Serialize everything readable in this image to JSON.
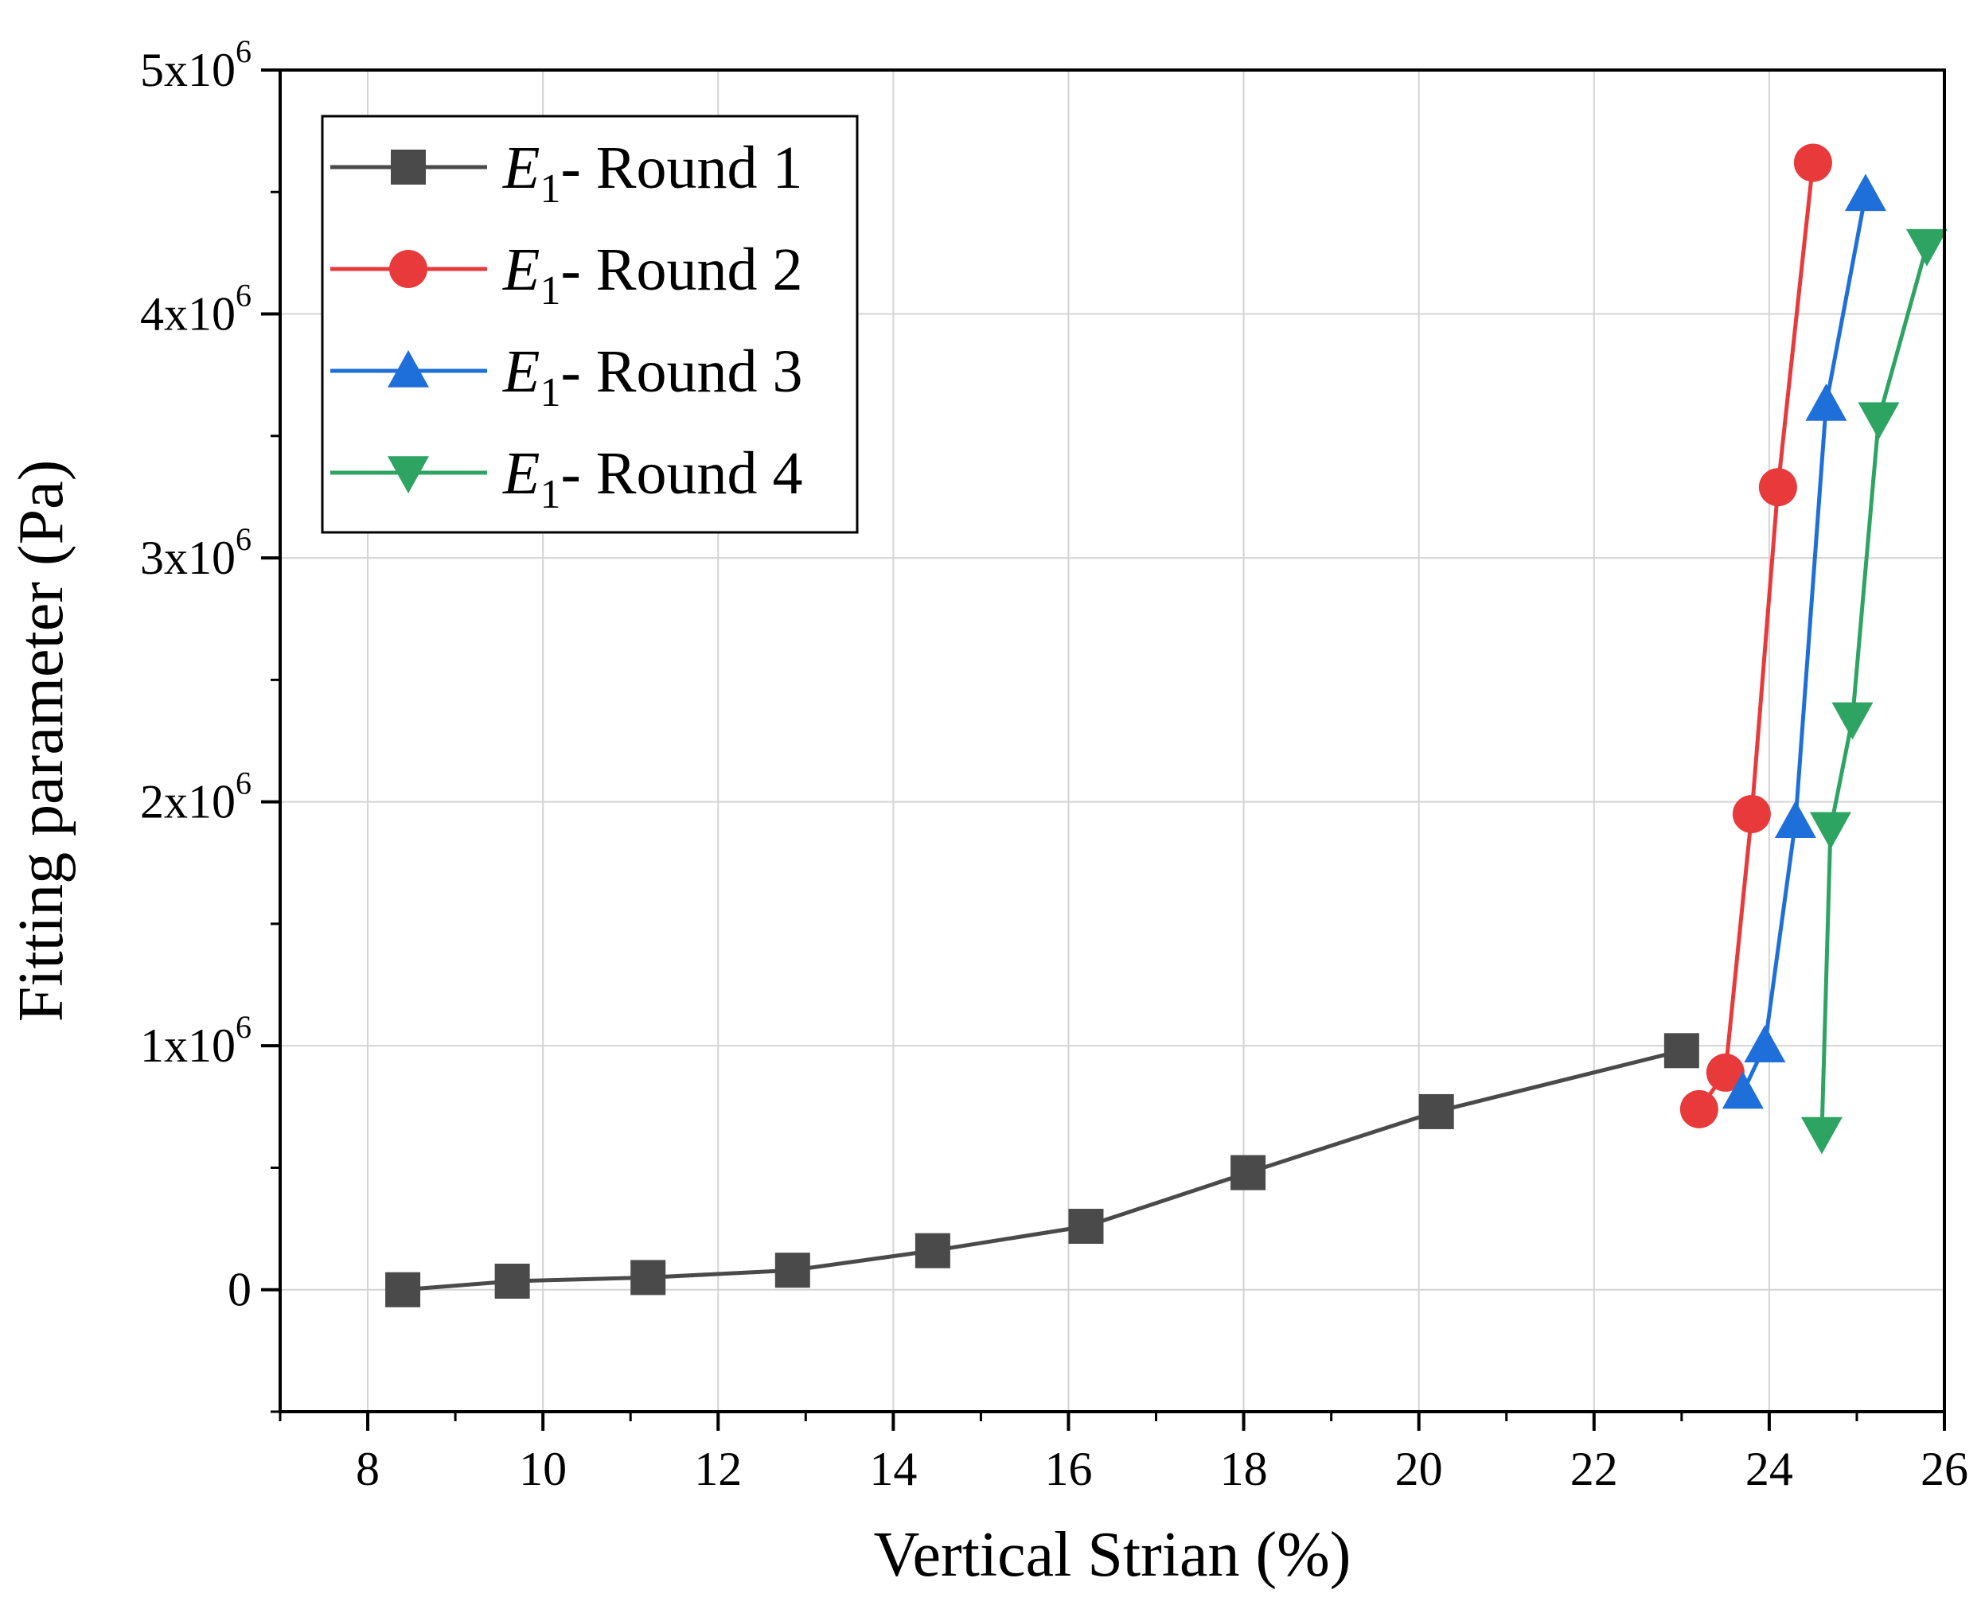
{
  "chart_data": {
    "type": "line",
    "title": "",
    "xlabel": "Vertical Strian (%)",
    "ylabel": "Fitting parameter (Pa)",
    "xlim": [
      7,
      26
    ],
    "ylim": [
      -500000,
      5000000
    ],
    "x_ticks": [
      8,
      10,
      12,
      14,
      16,
      18,
      20,
      22,
      24,
      26
    ],
    "x_tick_labels": [
      "8",
      "10",
      "12",
      "14",
      "16",
      "18",
      "20",
      "22",
      "24",
      "26"
    ],
    "y_ticks": [
      0,
      1000000,
      2000000,
      3000000,
      4000000,
      5000000
    ],
    "y_tick_labels": [
      {
        "mantissa": "0",
        "exponent": ""
      },
      {
        "mantissa": "1x10",
        "exponent": "6"
      },
      {
        "mantissa": "2x10",
        "exponent": "6"
      },
      {
        "mantissa": "3x10",
        "exponent": "6"
      },
      {
        "mantissa": "4x10",
        "exponent": "6"
      },
      {
        "mantissa": "5x10",
        "exponent": "6"
      }
    ],
    "grid": true,
    "legend_position": "top-left",
    "series": [
      {
        "name": "E1- Round 1",
        "legend_symbol": "E",
        "legend_subscript": "1",
        "legend_suffix": "- Round 1",
        "color": "#4a4a4a",
        "marker": "square",
        "x": [
          8.4,
          9.65,
          11.2,
          12.85,
          14.45,
          16.2,
          18.05,
          20.2,
          23.0
        ],
        "y": [
          0,
          35000,
          50000,
          80000,
          160000,
          260000,
          480000,
          730000,
          980000
        ]
      },
      {
        "name": "E1- Round 2",
        "legend_symbol": "E",
        "legend_subscript": "1",
        "legend_suffix": "- Round 2",
        "color": "#e8393b",
        "marker": "circle",
        "x": [
          23.2,
          23.5,
          23.8,
          24.1,
          24.5
        ],
        "y": [
          740000,
          890000,
          1950000,
          3290000,
          4620000
        ]
      },
      {
        "name": "E1- Round 3",
        "legend_symbol": "E",
        "legend_subscript": "1",
        "legend_suffix": "- Round 3",
        "color": "#1f6fdb",
        "marker": "triangle-up",
        "x": [
          23.7,
          23.95,
          24.3,
          24.65,
          25.1
        ],
        "y": [
          810000,
          1000000,
          1920000,
          3630000,
          4490000
        ]
      },
      {
        "name": "E1- Round 4",
        "legend_symbol": "E",
        "legend_subscript": "1",
        "legend_suffix": "- Round 4",
        "color": "#2ea463",
        "marker": "triangle-down",
        "x": [
          24.6,
          24.7,
          24.95,
          25.25,
          25.8
        ],
        "y": [
          640000,
          1890000,
          2340000,
          3570000,
          4280000
        ]
      }
    ]
  }
}
